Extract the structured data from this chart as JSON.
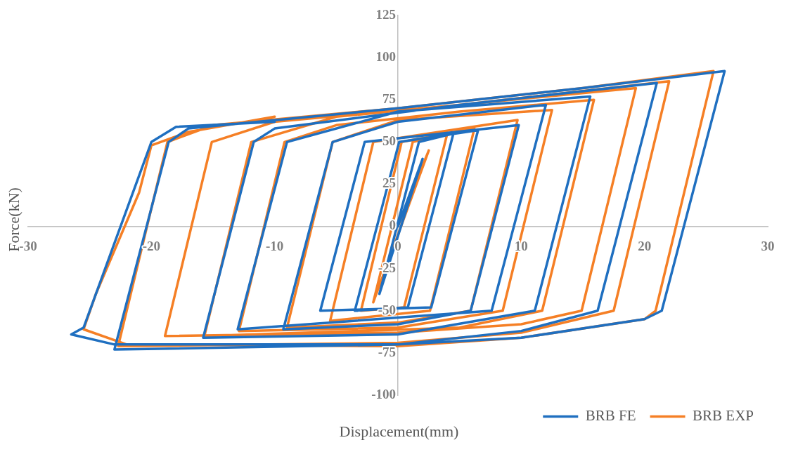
{
  "chart_data": {
    "type": "line",
    "xlabel": "Displacement(mm)",
    "ylabel": "Force(kN)",
    "xlim": [
      -30,
      30
    ],
    "xticks": [
      -30,
      -20,
      -10,
      0,
      10,
      20,
      30
    ],
    "ylim": [
      -100,
      125
    ],
    "yticks": [
      -100,
      -75,
      -50,
      -25,
      0,
      25,
      50,
      75,
      100,
      125
    ],
    "grid": false,
    "legend": "bottom right",
    "marker": "none",
    "line_style": "solid",
    "series": [
      {
        "name": "BRB FE",
        "color": "#1f6fc0",
        "x": [
          0,
          2,
          -1.5,
          1.7,
          4.5,
          0.8,
          -3.5,
          0.1,
          6.5,
          2.7,
          -6.3,
          -2.7,
          9.8,
          5.9,
          0,
          -9.3,
          -5.3,
          0,
          12,
          7.6,
          -13,
          -9,
          0,
          15.6,
          11.1,
          0,
          -15.8,
          -11.7,
          -10,
          5,
          21,
          16.2,
          10,
          0,
          -23,
          -18.6,
          -17,
          0,
          15,
          26.5,
          21.4,
          20,
          10,
          0,
          -23,
          -26.5,
          -25.5,
          -20,
          -18,
          -10
        ],
        "values": [
          0,
          40,
          -40,
          50,
          55,
          -48,
          -50,
          50,
          57,
          -48,
          -50,
          50,
          60,
          -50,
          -58,
          -61,
          50,
          62,
          72,
          -50,
          -61,
          50,
          68,
          77,
          -50,
          -64,
          -66,
          50,
          58,
          72,
          85,
          -50,
          -62,
          -70,
          -73,
          50,
          58,
          70,
          82,
          92,
          -50,
          -55,
          -66,
          -70,
          -70,
          -64,
          -60,
          50,
          59,
          62
        ]
      },
      {
        "name": "BRB EXP",
        "color": "#f57f25",
        "x": [
          0,
          2.5,
          -2,
          1.2,
          4,
          0.5,
          -3,
          0.3,
          6.2,
          2.6,
          -5.5,
          -2,
          9.7,
          5.9,
          0,
          -9,
          -5.3,
          0,
          12.5,
          8.5,
          0,
          -12.9,
          -9.2,
          -5,
          5,
          15.9,
          11.7,
          5,
          -15.7,
          -11.9,
          -5,
          19.3,
          14.9,
          10,
          0,
          -18.9,
          -15.1,
          -10,
          5,
          22,
          17.5,
          10,
          0,
          -22.7,
          -18.7,
          -15,
          0,
          15,
          25.6,
          20.9,
          20,
          10,
          0,
          -22,
          -25.5,
          -24.5,
          -21,
          -20,
          -17,
          -10
        ],
        "values": [
          0,
          45,
          -45,
          50,
          55,
          -48,
          -50,
          50,
          58,
          -50,
          -56,
          50,
          63,
          -50,
          -57,
          -60,
          50,
          63,
          69,
          -50,
          -60,
          -62,
          50,
          60,
          68,
          75,
          -50,
          -60,
          -65,
          50,
          65,
          82,
          -50,
          -58,
          -63,
          -65,
          50,
          62,
          72,
          86,
          -50,
          -63,
          -69,
          -71,
          50,
          60,
          70,
          82,
          92,
          -50,
          -55,
          -66,
          -71,
          -70,
          -61,
          -40,
          20,
          48,
          56,
          65
        ]
      }
    ]
  }
}
